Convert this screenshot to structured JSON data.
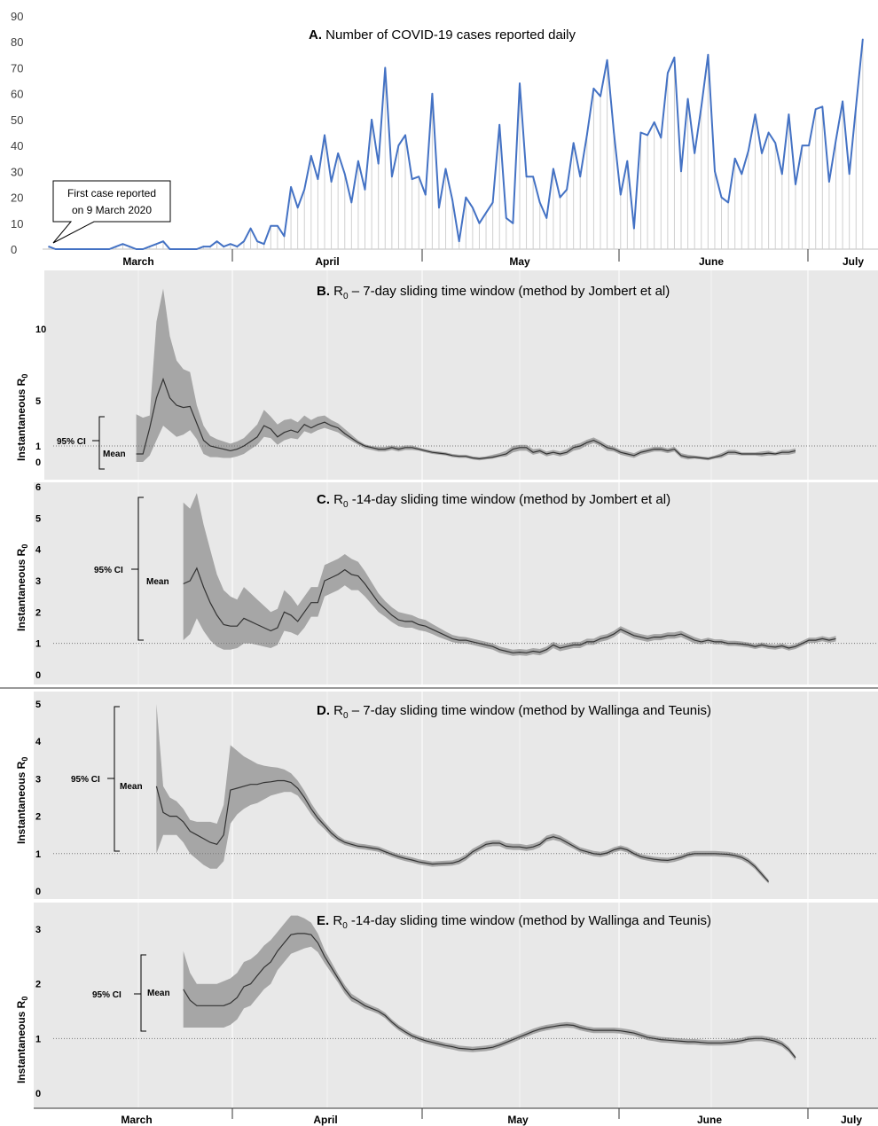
{
  "chart_data": [
    {
      "id": "A",
      "type": "line",
      "title_letter": "A.",
      "title": "Number of COVID-19 cases reported daily",
      "color": "#4472C4",
      "ylim": [
        0,
        90
      ],
      "yticks": [
        "0",
        "10",
        "20",
        "30",
        "40",
        "50",
        "60",
        "70",
        "80",
        "90"
      ],
      "xlim": [
        0,
        123
      ],
      "months": [
        "March",
        "April",
        "May",
        "June",
        "July"
      ],
      "callout_line1": "First case reported",
      "callout_line2": "on 9 March 2020",
      "values": [
        1,
        0,
        0,
        0,
        0,
        0,
        0,
        0,
        0,
        0,
        1,
        2,
        1,
        0,
        0,
        1,
        2,
        3,
        0,
        0,
        0,
        0,
        0,
        1,
        1,
        3,
        1,
        2,
        1,
        3,
        8,
        3,
        2,
        9,
        9,
        5,
        24,
        16,
        23,
        36,
        27,
        44,
        26,
        37,
        29,
        18,
        34,
        23,
        50,
        33,
        70,
        28,
        40,
        44,
        27,
        28,
        21,
        60,
        16,
        31,
        19,
        3,
        20,
        16,
        10,
        14,
        18,
        48,
        12,
        10,
        64,
        28,
        28,
        18,
        12,
        31,
        20,
        23,
        41,
        28,
        44,
        62,
        59,
        73,
        45,
        21,
        34,
        8,
        45,
        44,
        49,
        43,
        68,
        74,
        30,
        58,
        37,
        55,
        75,
        30,
        20,
        18,
        35,
        29,
        38,
        52,
        37,
        45,
        41,
        29,
        52,
        25,
        40,
        40,
        54,
        55,
        26,
        42,
        57,
        29,
        55,
        81
      ]
    },
    {
      "id": "B",
      "type": "area",
      "title_letter": "B.",
      "title_pre": "R",
      "title_sub": "0",
      "title_post": " – 7-day sliding time window (method by Jombert et al)",
      "ylabel": "Instantaneous R",
      "ylabel_sub": "0",
      "ylim": [
        0,
        14
      ],
      "yticks": [
        "0",
        "1",
        "5",
        "10"
      ],
      "ci_label": "95% CI",
      "mean_label": "Mean",
      "ref_line": 1,
      "start": 13,
      "mean": [
        0.5,
        0.5,
        2.6,
        5.2,
        6.5,
        5.2,
        4.6,
        4.4,
        4.5,
        3.0,
        1.5,
        1.0,
        0.9,
        0.8,
        0.7,
        0.8,
        1.0,
        1.4,
        1.8,
        2.8,
        2.5,
        1.8,
        2.2,
        2.4,
        2.2,
        2.9,
        2.6,
        2.9,
        3.1,
        2.8,
        2.6,
        2.1,
        1.7,
        1.3,
        1.0,
        0.9,
        0.8,
        0.8,
        0.9,
        0.8,
        0.9,
        0.9,
        0.8,
        0.7,
        0.6,
        0.55,
        0.5,
        0.4,
        0.35,
        0.35,
        0.25,
        0.2,
        0.25,
        0.3,
        0.4,
        0.5,
        0.8,
        0.9,
        0.9,
        0.6,
        0.7,
        0.5,
        0.6,
        0.5,
        0.6,
        0.9,
        1.0,
        1.3,
        1.5,
        1.2,
        0.9,
        0.8,
        0.6,
        0.5,
        0.4,
        0.6,
        0.7,
        0.8,
        0.8,
        0.7,
        0.8,
        0.4,
        0.3,
        0.3,
        0.25,
        0.2,
        0.3,
        0.4,
        0.6,
        0.6,
        0.5,
        0.5,
        0.5,
        0.5,
        0.55,
        0.5,
        0.6,
        0.6,
        0.7
      ],
      "upper": [
        3.8,
        3.5,
        3.7,
        10.5,
        12.8,
        9.5,
        7.8,
        7.2,
        7.0,
        4.6,
        2.8,
        1.9,
        1.6,
        1.4,
        1.2,
        1.4,
        1.7,
        2.3,
        2.9,
        4.2,
        3.6,
        2.9,
        3.3,
        3.4,
        3.1,
        3.7,
        3.3,
        3.6,
        3.7,
        3.3,
        3.0,
        2.5,
        2.0,
        1.5,
        1.15,
        1.0,
        0.95,
        0.95,
        1.05,
        0.95,
        1.05,
        1.05,
        0.9,
        0.8,
        0.7,
        0.65,
        0.6,
        0.5,
        0.45,
        0.45,
        0.35,
        0.3,
        0.35,
        0.45,
        0.55,
        0.7,
        1.0,
        1.1,
        1.1,
        0.8,
        0.85,
        0.65,
        0.75,
        0.65,
        0.8,
        1.1,
        1.25,
        1.55,
        1.75,
        1.45,
        1.1,
        0.95,
        0.75,
        0.65,
        0.55,
        0.75,
        0.85,
        0.95,
        0.95,
        0.85,
        0.95,
        0.55,
        0.45,
        0.4,
        0.35,
        0.3,
        0.4,
        0.55,
        0.75,
        0.75,
        0.6,
        0.6,
        0.6,
        0.65,
        0.7,
        0.6,
        0.75,
        0.75,
        0.85
      ],
      "lower": [
        0,
        0,
        0.4,
        1.5,
        2.8,
        2.3,
        1.8,
        2.0,
        2.4,
        1.6,
        0.5,
        0.3,
        0.3,
        0.25,
        0.25,
        0.35,
        0.5,
        0.8,
        1.1,
        1.8,
        1.7,
        1.1,
        1.5,
        1.7,
        1.6,
        2.3,
        2.1,
        2.4,
        2.6,
        2.4,
        2.2,
        1.8,
        1.45,
        1.1,
        0.85,
        0.75,
        0.65,
        0.65,
        0.75,
        0.65,
        0.75,
        0.75,
        0.7,
        0.6,
        0.5,
        0.45,
        0.4,
        0.3,
        0.25,
        0.25,
        0.15,
        0.1,
        0.15,
        0.2,
        0.3,
        0.35,
        0.6,
        0.7,
        0.7,
        0.45,
        0.55,
        0.35,
        0.45,
        0.35,
        0.45,
        0.7,
        0.8,
        1.05,
        1.25,
        1.0,
        0.7,
        0.65,
        0.45,
        0.35,
        0.25,
        0.45,
        0.55,
        0.65,
        0.65,
        0.55,
        0.65,
        0.25,
        0.15,
        0.2,
        0.15,
        0.1,
        0.2,
        0.25,
        0.45,
        0.45,
        0.4,
        0.4,
        0.4,
        0.35,
        0.4,
        0.4,
        0.45,
        0.45,
        0.55
      ]
    },
    {
      "id": "C",
      "type": "area",
      "title_letter": "C.",
      "title_pre": "R",
      "title_sub": "0",
      "title_post": " -14-day sliding time window (method by Jombert et al)",
      "ylabel": "Instantaneous R",
      "ylabel_sub": "0",
      "ylim": [
        -0.1,
        6.0
      ],
      "yticks": [
        "0",
        "1",
        "2",
        "3",
        "4",
        "5",
        "6"
      ],
      "ci_label": "95% CI",
      "mean_label": "Mean",
      "ref_line": 1,
      "start": 20,
      "mean": [
        2.9,
        3.0,
        3.4,
        2.8,
        2.3,
        1.9,
        1.6,
        1.55,
        1.55,
        1.8,
        1.7,
        1.6,
        1.5,
        1.4,
        1.5,
        2.0,
        1.9,
        1.7,
        2.0,
        2.3,
        2.3,
        3.0,
        3.1,
        3.2,
        3.35,
        3.2,
        3.15,
        2.9,
        2.6,
        2.3,
        2.1,
        1.9,
        1.75,
        1.7,
        1.7,
        1.6,
        1.55,
        1.45,
        1.35,
        1.25,
        1.15,
        1.1,
        1.1,
        1.05,
        1.0,
        0.95,
        0.9,
        0.8,
        0.75,
        0.7,
        0.72,
        0.7,
        0.75,
        0.72,
        0.8,
        0.95,
        0.85,
        0.9,
        0.95,
        0.95,
        1.05,
        1.05,
        1.15,
        1.2,
        1.3,
        1.45,
        1.35,
        1.25,
        1.2,
        1.15,
        1.2,
        1.2,
        1.25,
        1.25,
        1.3,
        1.2,
        1.1,
        1.05,
        1.1,
        1.05,
        1.05,
        1.0,
        1.0,
        0.98,
        0.95,
        0.9,
        0.95,
        0.9,
        0.88,
        0.92,
        0.85,
        0.9,
        1.0,
        1.1,
        1.1,
        1.15,
        1.1,
        1.15
      ],
      "upper": [
        5.5,
        5.3,
        5.8,
        4.8,
        4.0,
        3.2,
        2.7,
        2.5,
        2.4,
        2.8,
        2.6,
        2.4,
        2.2,
        2.0,
        2.1,
        2.7,
        2.5,
        2.2,
        2.5,
        2.8,
        2.8,
        3.5,
        3.6,
        3.7,
        3.85,
        3.7,
        3.6,
        3.3,
        2.95,
        2.6,
        2.35,
        2.15,
        2.0,
        1.95,
        1.9,
        1.8,
        1.75,
        1.62,
        1.5,
        1.38,
        1.27,
        1.22,
        1.2,
        1.15,
        1.1,
        1.05,
        1.0,
        0.9,
        0.85,
        0.8,
        0.82,
        0.8,
        0.85,
        0.82,
        0.9,
        1.05,
        0.95,
        1.0,
        1.05,
        1.05,
        1.15,
        1.15,
        1.25,
        1.3,
        1.4,
        1.55,
        1.45,
        1.35,
        1.3,
        1.25,
        1.3,
        1.3,
        1.35,
        1.35,
        1.4,
        1.3,
        1.2,
        1.13,
        1.18,
        1.13,
        1.13,
        1.08,
        1.08,
        1.06,
        1.03,
        0.98,
        1.03,
        0.98,
        0.96,
        1.0,
        0.93,
        0.98,
        1.08,
        1.18,
        1.18,
        1.23,
        1.18,
        1.24
      ],
      "lower": [
        1.1,
        1.3,
        1.8,
        1.4,
        1.1,
        0.9,
        0.8,
        0.8,
        0.85,
        1.0,
        1.0,
        0.95,
        0.9,
        0.85,
        0.95,
        1.4,
        1.35,
        1.25,
        1.5,
        1.85,
        1.85,
        2.5,
        2.6,
        2.7,
        2.85,
        2.7,
        2.7,
        2.5,
        2.25,
        2.0,
        1.85,
        1.68,
        1.55,
        1.5,
        1.5,
        1.42,
        1.38,
        1.3,
        1.2,
        1.12,
        1.04,
        1.0,
        1.0,
        0.95,
        0.9,
        0.85,
        0.8,
        0.7,
        0.65,
        0.6,
        0.62,
        0.6,
        0.65,
        0.62,
        0.7,
        0.85,
        0.75,
        0.8,
        0.85,
        0.85,
        0.95,
        0.95,
        1.05,
        1.1,
        1.2,
        1.35,
        1.25,
        1.15,
        1.1,
        1.05,
        1.1,
        1.1,
        1.15,
        1.15,
        1.2,
        1.1,
        1.0,
        0.97,
        1.02,
        0.97,
        0.97,
        0.92,
        0.92,
        0.9,
        0.87,
        0.82,
        0.87,
        0.82,
        0.8,
        0.84,
        0.77,
        0.82,
        0.92,
        1.02,
        1.02,
        1.07,
        1.02,
        1.06
      ]
    },
    {
      "id": "D",
      "type": "area",
      "title_letter": "D.",
      "title_pre": "R",
      "title_sub": "0",
      "title_post": " – 7-day sliding time window (method by Wallinga and Teunis)",
      "ylabel": "Instantaneous R",
      "ylabel_sub": "0",
      "ylim": [
        -0.2,
        5.2
      ],
      "yticks": [
        "0",
        "1",
        "2",
        "3",
        "4",
        "5"
      ],
      "ci_label": "95% CI",
      "mean_label": "Mean",
      "ref_line": 1,
      "start": 16,
      "mean": [
        2.8,
        2.1,
        2.0,
        2.0,
        1.85,
        1.6,
        1.5,
        1.4,
        1.3,
        1.25,
        1.5,
        2.7,
        2.75,
        2.8,
        2.85,
        2.85,
        2.9,
        2.92,
        2.95,
        2.95,
        2.9,
        2.75,
        2.5,
        2.2,
        1.95,
        1.75,
        1.55,
        1.4,
        1.3,
        1.25,
        1.2,
        1.18,
        1.15,
        1.12,
        1.05,
        0.98,
        0.92,
        0.87,
        0.83,
        0.78,
        0.75,
        0.72,
        0.73,
        0.74,
        0.75,
        0.8,
        0.9,
        1.05,
        1.15,
        1.25,
        1.28,
        1.28,
        1.2,
        1.18,
        1.18,
        1.15,
        1.18,
        1.25,
        1.4,
        1.45,
        1.4,
        1.3,
        1.2,
        1.1,
        1.05,
        1.0,
        0.98,
        1.02,
        1.1,
        1.15,
        1.1,
        1.0,
        0.92,
        0.88,
        0.85,
        0.83,
        0.82,
        0.85,
        0.9,
        0.97,
        1.0,
        1.0,
        1.0,
        1.0,
        0.99,
        0.98,
        0.95,
        0.9,
        0.8,
        0.65,
        0.45,
        0.25
      ],
      "upper": [
        5.0,
        2.8,
        2.5,
        2.4,
        2.2,
        1.9,
        1.85,
        1.85,
        1.85,
        1.8,
        2.3,
        3.9,
        3.75,
        3.6,
        3.5,
        3.4,
        3.35,
        3.32,
        3.3,
        3.25,
        3.15,
        2.95,
        2.68,
        2.35,
        2.08,
        1.85,
        1.65,
        1.48,
        1.37,
        1.32,
        1.27,
        1.25,
        1.22,
        1.19,
        1.12,
        1.05,
        0.99,
        0.94,
        0.9,
        0.85,
        0.82,
        0.79,
        0.8,
        0.81,
        0.82,
        0.88,
        0.98,
        1.13,
        1.23,
        1.33,
        1.36,
        1.36,
        1.28,
        1.26,
        1.26,
        1.23,
        1.26,
        1.33,
        1.48,
        1.53,
        1.48,
        1.38,
        1.27,
        1.17,
        1.12,
        1.07,
        1.05,
        1.09,
        1.17,
        1.22,
        1.17,
        1.07,
        0.99,
        0.95,
        0.92,
        0.9,
        0.89,
        0.92,
        0.97,
        1.04,
        1.07,
        1.07,
        1.07,
        1.07,
        1.06,
        1.05,
        1.02,
        0.97,
        0.87,
        0.72,
        0.52,
        0.3
      ],
      "lower": [
        1.0,
        1.5,
        1.5,
        1.5,
        1.3,
        1.0,
        0.85,
        0.7,
        0.6,
        0.6,
        0.8,
        1.8,
        2.05,
        2.2,
        2.3,
        2.35,
        2.45,
        2.55,
        2.6,
        2.65,
        2.65,
        2.55,
        2.32,
        2.05,
        1.82,
        1.65,
        1.45,
        1.32,
        1.23,
        1.18,
        1.13,
        1.11,
        1.08,
        1.05,
        0.98,
        0.91,
        0.85,
        0.8,
        0.76,
        0.71,
        0.68,
        0.65,
        0.66,
        0.67,
        0.68,
        0.72,
        0.82,
        0.97,
        1.07,
        1.17,
        1.2,
        1.2,
        1.12,
        1.1,
        1.1,
        1.07,
        1.1,
        1.17,
        1.32,
        1.37,
        1.32,
        1.22,
        1.13,
        1.03,
        0.98,
        0.93,
        0.91,
        0.95,
        1.03,
        1.08,
        1.03,
        0.93,
        0.85,
        0.81,
        0.78,
        0.76,
        0.75,
        0.78,
        0.83,
        0.9,
        0.93,
        0.93,
        0.93,
        0.93,
        0.92,
        0.91,
        0.88,
        0.83,
        0.73,
        0.58,
        0.38,
        0.2
      ]
    },
    {
      "id": "E",
      "type": "area",
      "title_letter": "E.",
      "title_pre": "R",
      "title_sub": "0",
      "title_post": " -14-day sliding time window (method by Wallinga and Teunis)",
      "ylabel": "Instantaneous R",
      "ylabel_sub": "0",
      "ylim": [
        -0.2,
        3.4
      ],
      "yticks": [
        "0",
        "1",
        "2",
        "3"
      ],
      "ci_label": "95% CI",
      "mean_label": "Mean",
      "ref_line": 1,
      "start": 20,
      "mean": [
        1.9,
        1.7,
        1.6,
        1.6,
        1.6,
        1.6,
        1.6,
        1.65,
        1.75,
        1.95,
        2.0,
        2.15,
        2.3,
        2.4,
        2.6,
        2.75,
        2.9,
        2.92,
        2.92,
        2.9,
        2.75,
        2.5,
        2.3,
        2.1,
        1.9,
        1.75,
        1.68,
        1.6,
        1.55,
        1.5,
        1.42,
        1.3,
        1.2,
        1.12,
        1.05,
        1.0,
        0.96,
        0.93,
        0.9,
        0.87,
        0.85,
        0.82,
        0.81,
        0.8,
        0.81,
        0.82,
        0.84,
        0.88,
        0.93,
        0.98,
        1.03,
        1.08,
        1.13,
        1.17,
        1.2,
        1.22,
        1.24,
        1.25,
        1.24,
        1.2,
        1.17,
        1.15,
        1.15,
        1.15,
        1.15,
        1.14,
        1.12,
        1.1,
        1.06,
        1.02,
        1.0,
        0.98,
        0.97,
        0.96,
        0.95,
        0.94,
        0.94,
        0.93,
        0.92,
        0.92,
        0.92,
        0.93,
        0.94,
        0.96,
        0.99,
        1.0,
        1.0,
        0.98,
        0.95,
        0.9,
        0.8,
        0.65
      ],
      "upper": [
        2.6,
        2.2,
        2.0,
        2.0,
        2.0,
        2.0,
        2.05,
        2.1,
        2.2,
        2.4,
        2.45,
        2.55,
        2.7,
        2.8,
        2.95,
        3.1,
        3.25,
        3.25,
        3.2,
        3.12,
        2.92,
        2.62,
        2.4,
        2.18,
        1.98,
        1.82,
        1.74,
        1.66,
        1.6,
        1.55,
        1.47,
        1.35,
        1.25,
        1.17,
        1.1,
        1.05,
        1.01,
        0.98,
        0.95,
        0.92,
        0.9,
        0.87,
        0.86,
        0.85,
        0.86,
        0.87,
        0.89,
        0.93,
        0.98,
        1.03,
        1.08,
        1.13,
        1.18,
        1.22,
        1.25,
        1.27,
        1.29,
        1.3,
        1.29,
        1.25,
        1.22,
        1.2,
        1.2,
        1.2,
        1.2,
        1.19,
        1.17,
        1.15,
        1.11,
        1.07,
        1.05,
        1.03,
        1.02,
        1.01,
        1.0,
        0.99,
        0.99,
        0.98,
        0.97,
        0.97,
        0.97,
        0.98,
        0.99,
        1.01,
        1.04,
        1.05,
        1.05,
        1.03,
        1.0,
        0.95,
        0.85,
        0.68
      ],
      "lower": [
        1.2,
        1.2,
        1.2,
        1.2,
        1.2,
        1.2,
        1.2,
        1.25,
        1.35,
        1.55,
        1.6,
        1.75,
        1.9,
        2.0,
        2.25,
        2.4,
        2.55,
        2.6,
        2.65,
        2.68,
        2.58,
        2.38,
        2.2,
        2.02,
        1.82,
        1.68,
        1.62,
        1.54,
        1.5,
        1.45,
        1.37,
        1.25,
        1.15,
        1.07,
        1.0,
        0.95,
        0.91,
        0.88,
        0.85,
        0.82,
        0.8,
        0.77,
        0.76,
        0.75,
        0.76,
        0.77,
        0.79,
        0.83,
        0.88,
        0.93,
        0.98,
        1.03,
        1.08,
        1.12,
        1.15,
        1.17,
        1.19,
        1.2,
        1.19,
        1.15,
        1.12,
        1.1,
        1.1,
        1.1,
        1.1,
        1.09,
        1.07,
        1.05,
        1.01,
        0.97,
        0.95,
        0.93,
        0.92,
        0.91,
        0.9,
        0.89,
        0.89,
        0.88,
        0.87,
        0.87,
        0.87,
        0.88,
        0.89,
        0.91,
        0.94,
        0.95,
        0.95,
        0.93,
        0.9,
        0.85,
        0.75,
        0.6
      ]
    }
  ]
}
